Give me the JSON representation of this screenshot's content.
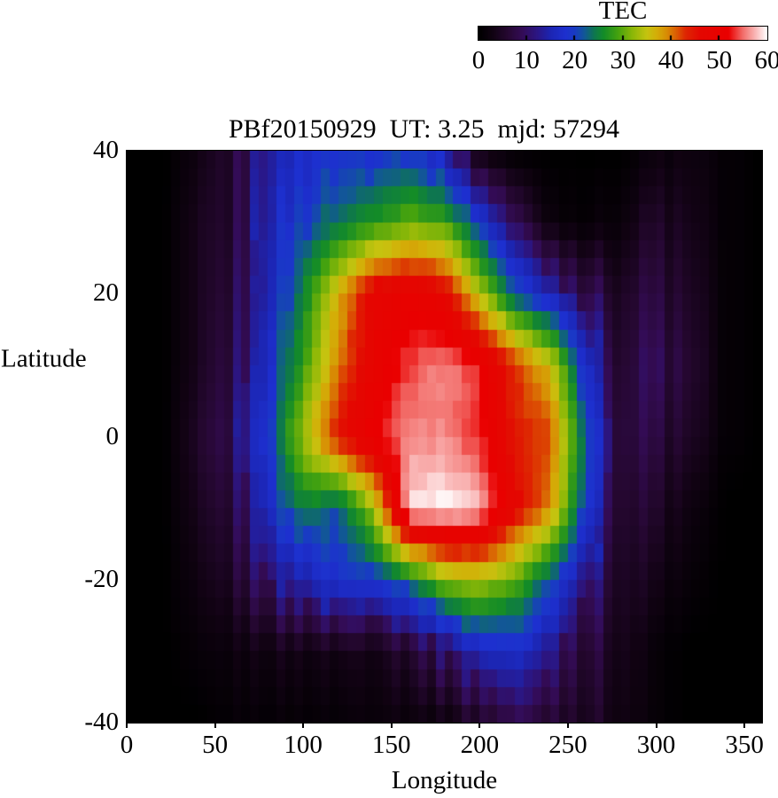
{
  "title": "PBf20150929  UT: 3.25  mjd: 57294",
  "colorbar": {
    "title": "TEC",
    "min": 0,
    "max": 60,
    "ticks": [
      0,
      10,
      20,
      30,
      40,
      50,
      60
    ]
  },
  "axes": {
    "x": {
      "label": "Longitude",
      "range": [
        0,
        360
      ],
      "ticks": [
        0,
        50,
        100,
        150,
        200,
        250,
        300,
        350
      ]
    },
    "y": {
      "label": "Latitude",
      "range": [
        -40,
        40
      ],
      "ticks": [
        40,
        20,
        0,
        -20,
        -40
      ]
    }
  },
  "palette": {
    "background": "#ffffff",
    "text": "#000000",
    "frame": "#000000"
  },
  "chart_data": {
    "type": "heatmap",
    "title": "PBf20150929  UT: 3.25  mjd: 57294",
    "value_name": "TEC",
    "xlabel": "Longitude",
    "ylabel": "Latitude",
    "xlim": [
      0,
      360
    ],
    "ylim": [
      -40,
      40
    ],
    "zlim": [
      0,
      60
    ],
    "cell_size_deg": {
      "lon": 5,
      "lat": 2.5
    },
    "grid_lons": [
      0,
      20,
      40,
      60,
      80,
      100,
      120,
      140,
      160,
      180,
      200,
      220,
      240,
      260,
      280,
      300,
      320,
      340,
      360
    ],
    "grid_lats": [
      40,
      30,
      20,
      10,
      0,
      -10,
      -20,
      -30,
      -40
    ],
    "values": [
      [
        0,
        0,
        2,
        6,
        14,
        17,
        18,
        19,
        20,
        14,
        2,
        0,
        0,
        0,
        0,
        2,
        2,
        1,
        0
      ],
      [
        0,
        0,
        3,
        6,
        15,
        20,
        24,
        27,
        30,
        29,
        20,
        8,
        2,
        1,
        2,
        5,
        3,
        1,
        0
      ],
      [
        0,
        0,
        3,
        7,
        16,
        25,
        37,
        48,
        50,
        47,
        34,
        22,
        15,
        9,
        5,
        7,
        4,
        1,
        0
      ],
      [
        0,
        0,
        3,
        8,
        17,
        28,
        40,
        49,
        54,
        56,
        53,
        43,
        36,
        18,
        6,
        9,
        5,
        1,
        0
      ],
      [
        0,
        0,
        4,
        9,
        20,
        33,
        45,
        52,
        56,
        56,
        53,
        44,
        42,
        22,
        7,
        7,
        4,
        1,
        0
      ],
      [
        0,
        0,
        3,
        7,
        17,
        25,
        22,
        33,
        59,
        60,
        58,
        47,
        39,
        20,
        6,
        5,
        2,
        0,
        0
      ],
      [
        0,
        0,
        2,
        5,
        11,
        15,
        18,
        20,
        24,
        32,
        34,
        30,
        22,
        12,
        5,
        3,
        1,
        0,
        0
      ],
      [
        0,
        0,
        1,
        2,
        3,
        3,
        3,
        4,
        6,
        10,
        16,
        17,
        13,
        7,
        4,
        1,
        0,
        0,
        0
      ],
      [
        0,
        0,
        0,
        1,
        1,
        1,
        1,
        2,
        2,
        2,
        5,
        7,
        6,
        5,
        3,
        1,
        0,
        0,
        0
      ]
    ],
    "colormap_stops": [
      [
        0,
        "#000000"
      ],
      [
        3,
        "#120314"
      ],
      [
        6,
        "#260832"
      ],
      [
        9,
        "#340c56"
      ],
      [
        12,
        "#2c1682"
      ],
      [
        15,
        "#1c26b4"
      ],
      [
        18,
        "#1e30d0"
      ],
      [
        20,
        "#193cc3"
      ],
      [
        22,
        "#125896"
      ],
      [
        24,
        "#0e7650"
      ],
      [
        26,
        "#148c28"
      ],
      [
        29,
        "#46a30f"
      ],
      [
        32,
        "#8cb808"
      ],
      [
        35,
        "#c6c410"
      ],
      [
        37,
        "#d4af08"
      ],
      [
        39,
        "#d88f05"
      ],
      [
        41,
        "#db6004"
      ],
      [
        43,
        "#de2802"
      ],
      [
        46,
        "#e40802"
      ],
      [
        52,
        "#ea0000"
      ],
      [
        55,
        "#f36e6a"
      ],
      [
        58,
        "#fbc4c4"
      ],
      [
        60,
        "#ffffff"
      ]
    ],
    "legend_position": "top-right",
    "grid": false
  }
}
